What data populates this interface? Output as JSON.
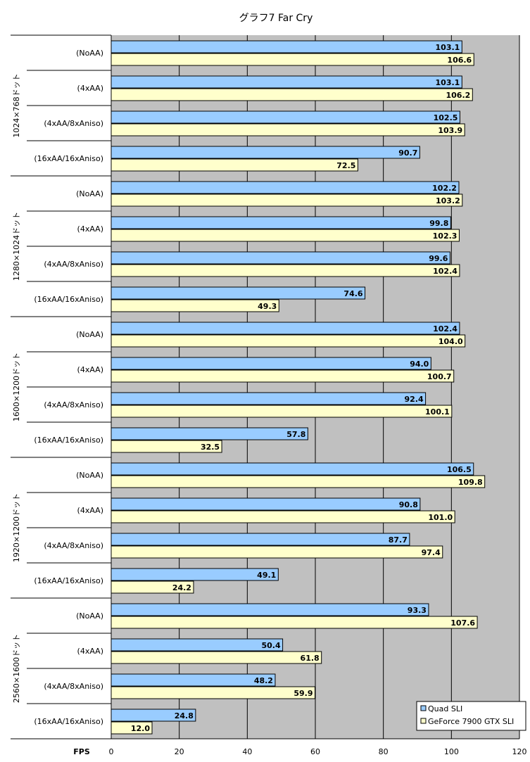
{
  "chart_data": {
    "type": "bar",
    "orientation": "horizontal",
    "title": "グラフ7  Far Cry",
    "xlabel": "FPS",
    "xlim": [
      0,
      120
    ],
    "xticks": [
      0,
      20,
      40,
      60,
      80,
      100,
      120
    ],
    "grid": true,
    "legend_position": "bottom-right",
    "groups": [
      "1024×768ドット",
      "1280×1024ドット",
      "1600×1200ドット",
      "1920×1200ドット",
      "2560×1600ドット"
    ],
    "subcategories": [
      "(NoAA)",
      "(4xAA)",
      "(4xAA/8xAniso)",
      "(16xAA/16xAniso)"
    ],
    "series": [
      {
        "name": "Quad SLI",
        "color": "#99ccff",
        "values": [
          103.1,
          103.1,
          102.5,
          90.7,
          102.2,
          99.8,
          99.6,
          74.6,
          102.4,
          94.0,
          92.4,
          57.8,
          106.5,
          90.8,
          87.7,
          49.1,
          93.3,
          50.4,
          48.2,
          24.8
        ],
        "labels": [
          "103.1",
          "103.1",
          "102.5",
          "90.7",
          "102.2",
          "99.8",
          "99.6",
          "74.6",
          "102.4",
          "94.0",
          "92.4",
          "57.8",
          "106.5",
          "90.8",
          "87.7",
          "49.1",
          "93.3",
          "50.4",
          "48.2",
          "24.8"
        ]
      },
      {
        "name": "GeForce 7900 GTX SLI",
        "color": "#ffffcc",
        "values": [
          106.6,
          106.2,
          103.9,
          72.5,
          103.2,
          102.3,
          102.4,
          49.3,
          104.0,
          100.7,
          100.1,
          32.5,
          109.8,
          101.0,
          97.4,
          24.2,
          107.6,
          61.8,
          59.9,
          12.0
        ],
        "labels": [
          "106.6",
          "106.2",
          "103.9",
          "72.5",
          "103.2",
          "102.3",
          "102.4",
          "49.3",
          "104.0",
          "100.7",
          "100.1",
          "32.5",
          "109.8",
          "101.0",
          "97.4",
          "24.2",
          "107.6",
          "61.8",
          "59.9",
          "12.0"
        ]
      }
    ],
    "colors": {
      "plot_background": "#c0c0c0",
      "gridline": "#000000",
      "bar_border": "#000000"
    }
  }
}
